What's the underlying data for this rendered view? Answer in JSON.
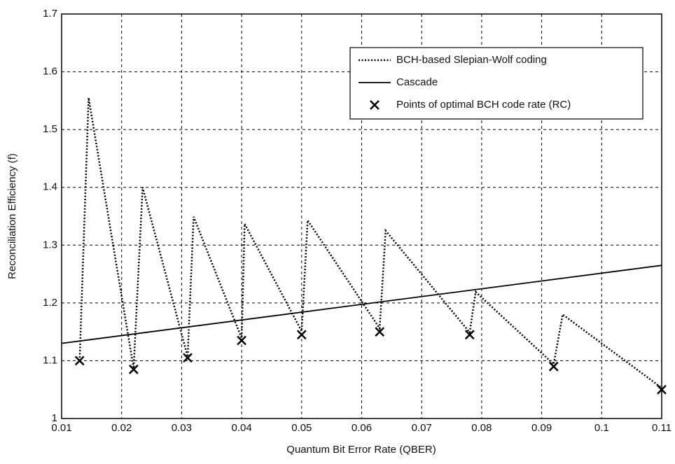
{
  "chart_data": {
    "type": "line",
    "xlabel": "Quantum Bit Error Rate (QBER)",
    "ylabel": "Reconciliation Efficiency (f)",
    "xlim": [
      0.01,
      0.11
    ],
    "ylim": [
      1,
      1.7
    ],
    "xticks": [
      0.01,
      0.02,
      0.03,
      0.04,
      0.05,
      0.06,
      0.07,
      0.08,
      0.09,
      0.1,
      0.11
    ],
    "yticks": [
      1,
      1.1,
      1.2,
      1.3,
      1.4,
      1.5,
      1.6,
      1.7
    ],
    "grid": true,
    "legend": "upper right",
    "series": [
      {
        "name": "BCH-based Slepian-Wolf coding",
        "color": "#000000",
        "line_style": "dotted",
        "x": [
          0.013,
          0.0145,
          0.022,
          0.0235,
          0.031,
          0.032,
          0.04,
          0.0405,
          0.05,
          0.051,
          0.063,
          0.064,
          0.078,
          0.079,
          0.092,
          0.0935,
          0.11
        ],
        "values": [
          1.1,
          1.555,
          1.087,
          1.4,
          1.107,
          1.349,
          1.139,
          1.337,
          1.151,
          1.343,
          1.156,
          1.325,
          1.149,
          1.219,
          1.094,
          1.18,
          1.053
        ]
      },
      {
        "name": "Cascade",
        "color": "#000000",
        "line_style": "solid",
        "x": [
          0.01,
          0.11
        ],
        "values": [
          1.13,
          1.265
        ]
      },
      {
        "name": "Points of optimal BCH code rate (RC)",
        "color": "#000000",
        "line_style": "none",
        "marker": "x",
        "x": [
          0.013,
          0.022,
          0.031,
          0.04,
          0.05,
          0.063,
          0.078,
          0.092,
          0.11
        ],
        "values": [
          1.1,
          1.085,
          1.105,
          1.135,
          1.145,
          1.15,
          1.145,
          1.09,
          1.05
        ]
      }
    ]
  }
}
